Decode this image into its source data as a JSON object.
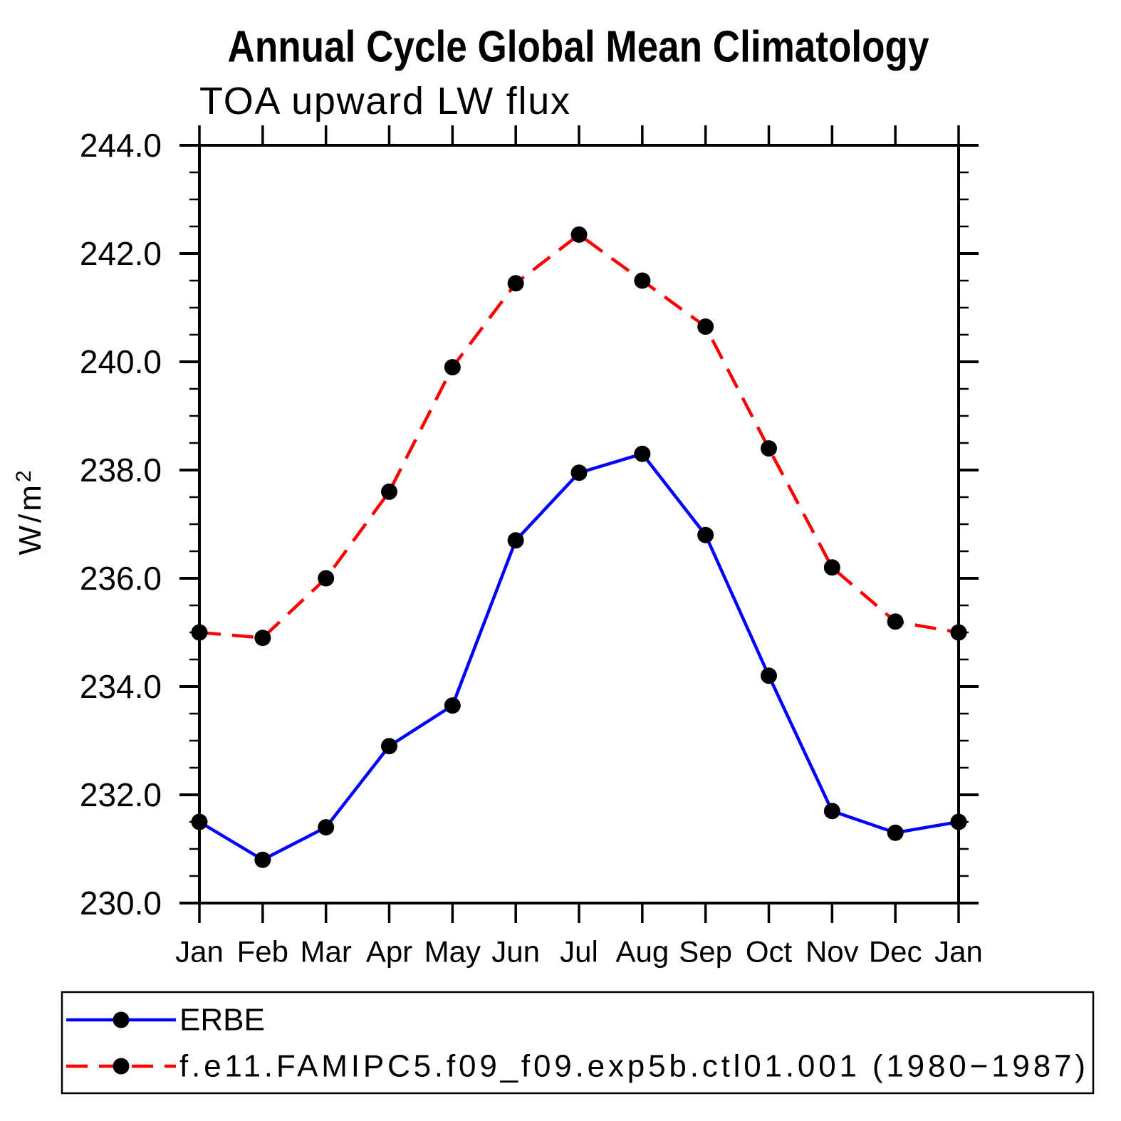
{
  "chart_data": {
    "type": "line",
    "title": "Annual Cycle Global Mean Climatology",
    "subtitle": "TOA upward LW flux",
    "ylabel": "W/m²",
    "categories": [
      "Jan",
      "Feb",
      "Mar",
      "Apr",
      "May",
      "Jun",
      "Jul",
      "Aug",
      "Sep",
      "Oct",
      "Nov",
      "Dec",
      "Jan"
    ],
    "series": [
      {
        "name": "ERBE",
        "color": "#0000ff",
        "line_style": "solid",
        "values": [
          231.5,
          230.8,
          231.4,
          232.9,
          233.65,
          236.7,
          237.95,
          238.3,
          236.8,
          234.2,
          231.7,
          231.3,
          231.5
        ]
      },
      {
        "name": "f.e11.FAMIPC5.f09_f09.exp5b.ctl01.001 (1980−1987)",
        "color": "#ff0000",
        "line_style": "dashed",
        "values": [
          235.0,
          234.9,
          236.0,
          237.6,
          239.9,
          241.45,
          242.35,
          241.5,
          240.65,
          238.4,
          236.2,
          235.2,
          235.0
        ]
      }
    ],
    "marker": {
      "shape": "circle",
      "color": "#000000"
    },
    "ylim": [
      230.0,
      244.0
    ],
    "ytick_major_interval": 2.0,
    "ytick_minor_interval": 0.5,
    "ytick_labels": [
      "244.0",
      "242.0",
      "240.0",
      "238.0",
      "236.0",
      "234.0",
      "232.0",
      "230.0"
    ],
    "grid": "off",
    "legend_position": "bottom"
  }
}
